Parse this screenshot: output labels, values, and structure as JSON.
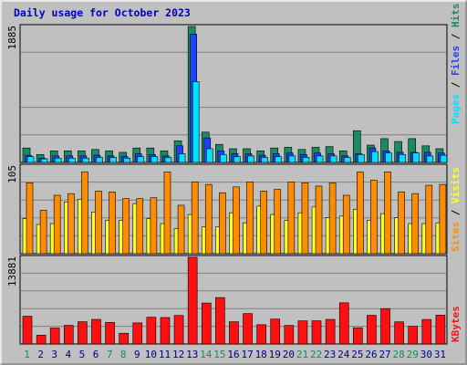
{
  "title": "Daily usage for October 2023",
  "colors": {
    "pages": "#00e0ff",
    "files": "#2040ff",
    "hits": "#1a8a60",
    "sites": "#ff8c00",
    "visits": "#ffff20",
    "kbytes": "#ff1010",
    "weekend_label": "#1a8a60",
    "weekday_label": "#000080",
    "title": "#0000c0"
  },
  "chart_data": [
    {
      "type": "bar",
      "title": "Daily usage for October 2023",
      "panel": "hits-files-pages",
      "ylabel_parts": [
        "Pages",
        "/",
        "Files",
        "/",
        "Hits"
      ],
      "ymax_label": "1885",
      "ylim": [
        0,
        1885
      ],
      "categories": [
        "1",
        "2",
        "3",
        "4",
        "5",
        "6",
        "7",
        "8",
        "9",
        "10",
        "11",
        "12",
        "13",
        "14",
        "15",
        "16",
        "17",
        "18",
        "19",
        "20",
        "21",
        "22",
        "23",
        "24",
        "25",
        "26",
        "27",
        "28",
        "29",
        "30",
        "31"
      ],
      "weekend_days": [
        1,
        7,
        8,
        14,
        15,
        21,
        22,
        28,
        29
      ],
      "series": [
        {
          "name": "Hits",
          "values": [
            200,
            110,
            160,
            160,
            160,
            180,
            160,
            140,
            200,
            200,
            160,
            300,
            1885,
            420,
            250,
            190,
            190,
            160,
            200,
            210,
            180,
            210,
            220,
            160,
            440,
            240,
            330,
            290,
            330,
            230,
            190
          ]
        },
        {
          "name": "Files",
          "values": [
            100,
            60,
            90,
            90,
            90,
            100,
            90,
            80,
            120,
            110,
            90,
            230,
            1780,
            340,
            160,
            120,
            120,
            100,
            120,
            130,
            110,
            130,
            120,
            90,
            120,
            200,
            160,
            140,
            140,
            140,
            130
          ]
        },
        {
          "name": "Pages",
          "values": [
            80,
            50,
            60,
            60,
            60,
            70,
            70,
            60,
            80,
            80,
            70,
            120,
            1120,
            190,
            110,
            80,
            90,
            70,
            80,
            90,
            70,
            90,
            90,
            70,
            110,
            150,
            130,
            110,
            130,
            90,
            100
          ]
        }
      ]
    },
    {
      "type": "bar",
      "panel": "sites-visits",
      "ylabel_parts": [
        "Sites",
        "/",
        "Visits"
      ],
      "ymax_label": "105",
      "ylim": [
        0,
        105
      ],
      "categories": [
        "1",
        "2",
        "3",
        "4",
        "5",
        "6",
        "7",
        "8",
        "9",
        "10",
        "11",
        "12",
        "13",
        "14",
        "15",
        "16",
        "17",
        "18",
        "19",
        "20",
        "21",
        "22",
        "23",
        "24",
        "25",
        "26",
        "27",
        "28",
        "29",
        "30",
        "31"
      ],
      "series": [
        {
          "name": "Sites",
          "values": [
            85,
            52,
            70,
            72,
            98,
            75,
            74,
            66,
            66,
            67,
            98,
            58,
            86,
            83,
            73,
            80,
            86,
            75,
            77,
            86,
            85,
            81,
            85,
            70,
            98,
            88,
            98,
            74,
            72,
            82,
            83
          ]
        },
        {
          "name": "Visits",
          "values": [
            42,
            35,
            36,
            62,
            65,
            50,
            40,
            40,
            60,
            42,
            36,
            30,
            47,
            32,
            32,
            49,
            37,
            57,
            47,
            40,
            49,
            56,
            43,
            45,
            53,
            40,
            48,
            43,
            36,
            36,
            37
          ]
        }
      ]
    },
    {
      "type": "bar",
      "panel": "kbytes",
      "ylabel_parts": [
        "KBytes"
      ],
      "ymax_label": "13881",
      "ylim": [
        0,
        13881
      ],
      "categories": [
        "1",
        "2",
        "3",
        "4",
        "5",
        "6",
        "7",
        "8",
        "9",
        "10",
        "11",
        "12",
        "13",
        "14",
        "15",
        "16",
        "17",
        "18",
        "19",
        "20",
        "21",
        "22",
        "23",
        "24",
        "25",
        "26",
        "27",
        "28",
        "29",
        "30",
        "31"
      ],
      "series": [
        {
          "name": "KBytes",
          "values": [
            4450,
            1420,
            2560,
            2990,
            3570,
            3940,
            3460,
            1720,
            3380,
            4290,
            4240,
            4570,
            13881,
            6560,
            7440,
            3570,
            4870,
            3090,
            3990,
            2980,
            3710,
            3720,
            3940,
            6600,
            2610,
            4600,
            5670,
            3550,
            2820,
            3930,
            4620
          ]
        }
      ]
    }
  ]
}
